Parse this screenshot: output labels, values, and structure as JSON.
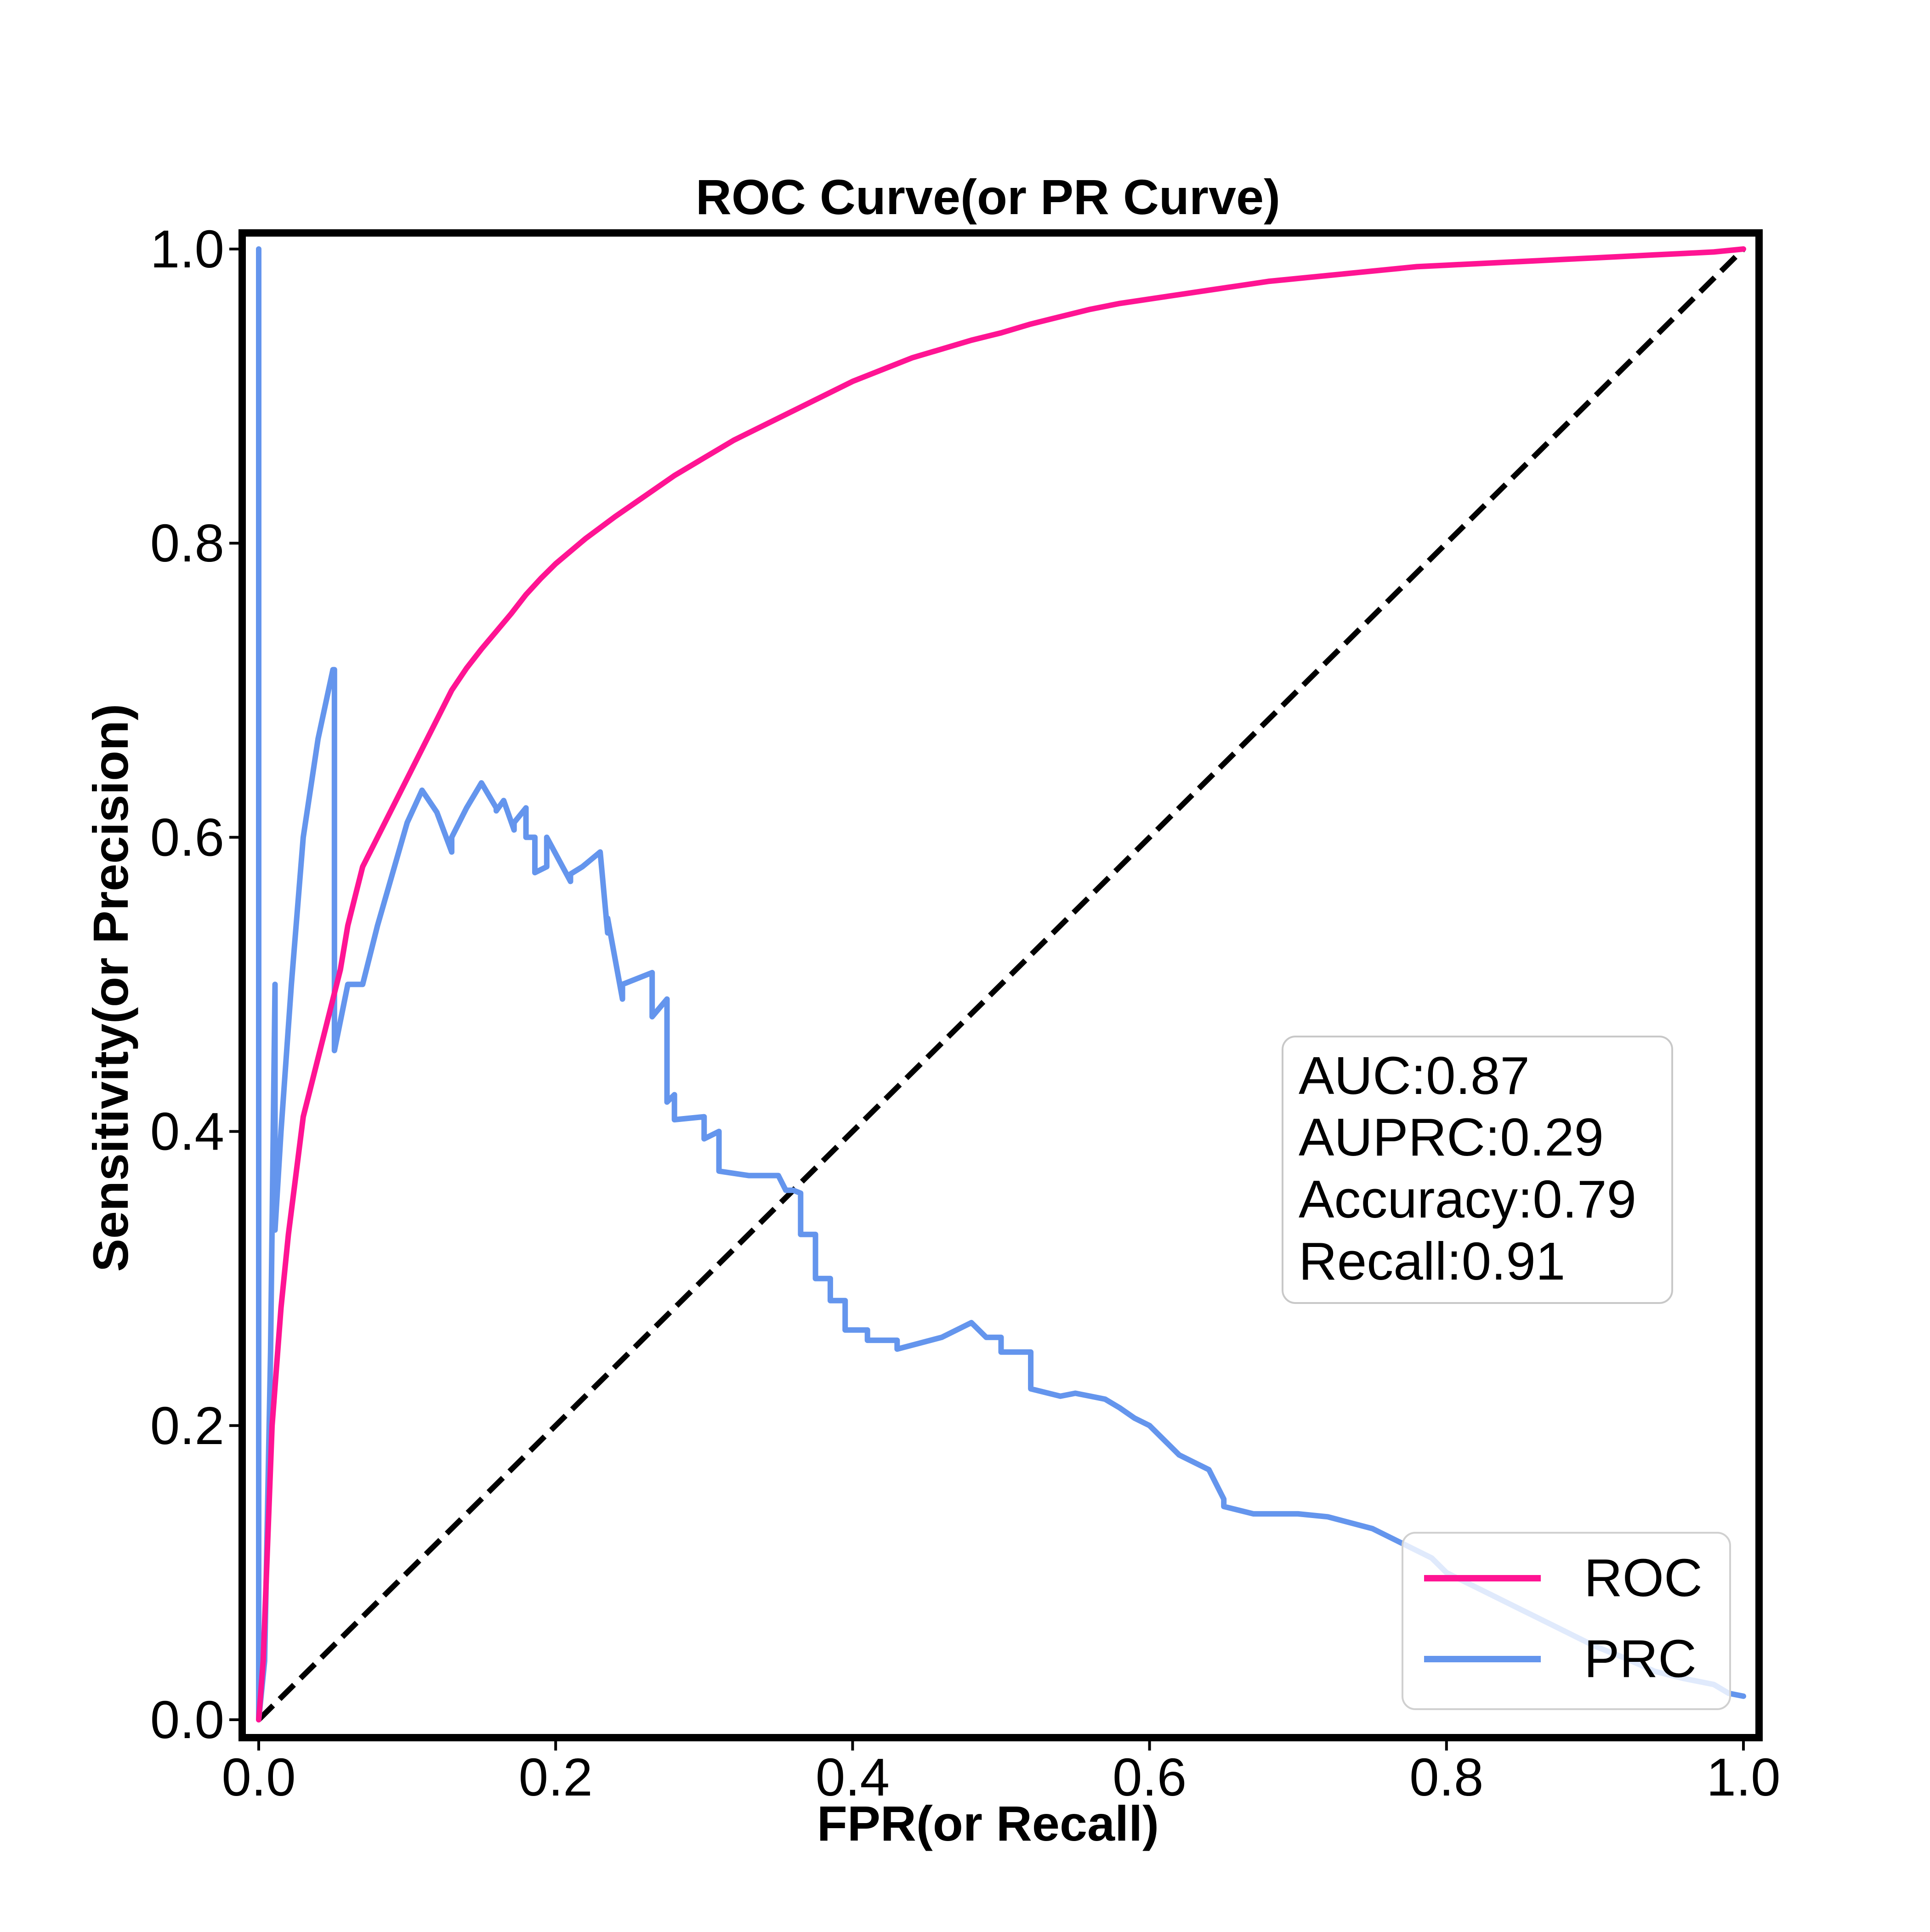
{
  "chart_data": {
    "type": "line",
    "title": "ROC Curve(or PR Curve)",
    "xlabel": "FPR(or Recall)",
    "ylabel": "Sensitivity(or Precision)",
    "xlim": [
      0.0,
      1.0
    ],
    "ylim": [
      0.0,
      1.0
    ],
    "x_ticks": [
      0.0,
      0.2,
      0.4,
      0.6,
      0.8,
      1.0
    ],
    "y_ticks": [
      0.0,
      0.2,
      0.4,
      0.6,
      0.8,
      1.0
    ],
    "x_tick_labels": [
      "0.0",
      "0.2",
      "0.4",
      "0.6",
      "0.8",
      "1.0"
    ],
    "y_tick_labels": [
      "0.0",
      "0.2",
      "0.4",
      "0.6",
      "0.8",
      "1.0"
    ],
    "grid": false,
    "legend_position": "lower-right",
    "series": [
      {
        "name": "ROC",
        "color": "#ff1493",
        "x": [
          0.0,
          0.003,
          0.006,
          0.009,
          0.012,
          0.015,
          0.02,
          0.025,
          0.03,
          0.035,
          0.04,
          0.045,
          0.05,
          0.055,
          0.06,
          0.065,
          0.07,
          0.08,
          0.09,
          0.1,
          0.11,
          0.12,
          0.13,
          0.14,
          0.15,
          0.16,
          0.17,
          0.18,
          0.19,
          0.2,
          0.22,
          0.24,
          0.26,
          0.28,
          0.3,
          0.32,
          0.34,
          0.36,
          0.38,
          0.4,
          0.42,
          0.44,
          0.46,
          0.48,
          0.5,
          0.52,
          0.54,
          0.56,
          0.58,
          0.6,
          0.62,
          0.64,
          0.66,
          0.68,
          0.7,
          0.72,
          0.74,
          0.76,
          0.78,
          0.8,
          0.82,
          0.84,
          0.86,
          0.88,
          0.9,
          0.92,
          0.94,
          0.96,
          0.98,
          1.0
        ],
        "y": [
          0.0,
          0.04,
          0.12,
          0.2,
          0.24,
          0.28,
          0.33,
          0.37,
          0.41,
          0.43,
          0.45,
          0.47,
          0.49,
          0.51,
          0.54,
          0.56,
          0.58,
          0.6,
          0.62,
          0.64,
          0.66,
          0.68,
          0.7,
          0.715,
          0.728,
          0.74,
          0.752,
          0.765,
          0.776,
          0.786,
          0.803,
          0.818,
          0.832,
          0.846,
          0.858,
          0.87,
          0.88,
          0.89,
          0.9,
          0.91,
          0.918,
          0.926,
          0.932,
          0.938,
          0.943,
          0.949,
          0.954,
          0.959,
          0.963,
          0.966,
          0.969,
          0.972,
          0.975,
          0.978,
          0.98,
          0.982,
          0.984,
          0.986,
          0.988,
          0.989,
          0.99,
          0.991,
          0.992,
          0.993,
          0.994,
          0.995,
          0.996,
          0.997,
          0.998,
          1.0
        ]
      },
      {
        "name": "PRC",
        "color": "#6495ed",
        "x": [
          0.0,
          0.0,
          0.0,
          0.004,
          0.008,
          0.011,
          0.011,
          0.015,
          0.022,
          0.03,
          0.04,
          0.05,
          0.051,
          0.051,
          0.06,
          0.07,
          0.08,
          0.09,
          0.1,
          0.11,
          0.12,
          0.13,
          0.13,
          0.14,
          0.15,
          0.16,
          0.16,
          0.165,
          0.172,
          0.172,
          0.18,
          0.18,
          0.186,
          0.186,
          0.194,
          0.194,
          0.21,
          0.21,
          0.218,
          0.23,
          0.235,
          0.235,
          0.245,
          0.245,
          0.265,
          0.265,
          0.275,
          0.275,
          0.28,
          0.28,
          0.3,
          0.3,
          0.31,
          0.31,
          0.33,
          0.345,
          0.35,
          0.355,
          0.36,
          0.365,
          0.365,
          0.375,
          0.375,
          0.385,
          0.385,
          0.395,
          0.395,
          0.41,
          0.41,
          0.43,
          0.43,
          0.46,
          0.48,
          0.49,
          0.5,
          0.5,
          0.52,
          0.52,
          0.54,
          0.55,
          0.56,
          0.57,
          0.58,
          0.59,
          0.6,
          0.61,
          0.62,
          0.64,
          0.65,
          0.65,
          0.67,
          0.7,
          0.72,
          0.75,
          0.77,
          0.79,
          0.8,
          0.82,
          0.84,
          0.86,
          0.88,
          0.9,
          0.92,
          0.94,
          0.96,
          0.98,
          0.99,
          1.0
        ],
        "y": [
          0.0,
          1.0,
          0.0,
          0.04,
          0.25,
          0.5,
          0.333,
          0.4,
          0.5,
          0.6,
          0.667,
          0.714,
          0.714,
          0.455,
          0.5,
          0.5,
          0.54,
          0.575,
          0.61,
          0.632,
          0.617,
          0.59,
          0.6,
          0.62,
          0.637,
          0.62,
          0.618,
          0.625,
          0.605,
          0.61,
          0.62,
          0.6,
          0.6,
          0.576,
          0.58,
          0.6,
          0.57,
          0.575,
          0.58,
          0.59,
          0.535,
          0.545,
          0.49,
          0.5,
          0.508,
          0.478,
          0.49,
          0.42,
          0.425,
          0.408,
          0.41,
          0.395,
          0.4,
          0.373,
          0.37,
          0.37,
          0.37,
          0.36,
          0.36,
          0.358,
          0.33,
          0.33,
          0.3,
          0.3,
          0.285,
          0.285,
          0.265,
          0.265,
          0.258,
          0.258,
          0.252,
          0.26,
          0.27,
          0.26,
          0.26,
          0.25,
          0.25,
          0.225,
          0.22,
          0.222,
          0.22,
          0.218,
          0.212,
          0.205,
          0.2,
          0.19,
          0.18,
          0.17,
          0.15,
          0.145,
          0.14,
          0.14,
          0.138,
          0.13,
          0.12,
          0.11,
          0.1,
          0.09,
          0.08,
          0.07,
          0.06,
          0.05,
          0.042,
          0.033,
          0.028,
          0.024,
          0.018,
          0.016
        ]
      },
      {
        "name": "",
        "color": "#000000",
        "style": "dashed",
        "x": [
          0.0,
          1.0
        ],
        "y": [
          0.0,
          1.0
        ]
      }
    ],
    "annotation_lines": [
      "AUC:0.87",
      "AUPRC:0.29",
      "Accuracy:0.79",
      "Recall:0.91"
    ],
    "annotation_position": "center-right"
  }
}
